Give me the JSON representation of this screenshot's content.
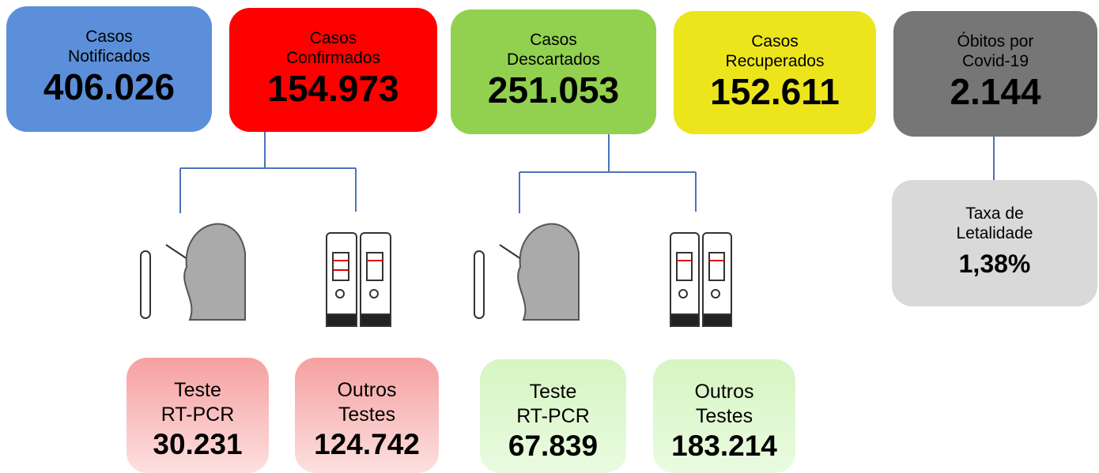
{
  "summary": [
    {
      "label": [
        "Casos",
        "Notificados"
      ],
      "value": "406.026"
    },
    {
      "label": [
        "Casos",
        "Confirmados"
      ],
      "value": "154.973"
    },
    {
      "label": [
        "Casos",
        "Descartados"
      ],
      "value": "251.053"
    },
    {
      "label": [
        "Casos",
        "Recuperados"
      ],
      "value": "152.611"
    },
    {
      "label": [
        "Óbitos por",
        "Covid-19"
      ],
      "value": "2.144"
    }
  ],
  "lethality": {
    "label": [
      "Taxa de",
      "Letalidade"
    ],
    "value": "1,38%"
  },
  "tests": [
    {
      "label": [
        "Teste",
        "RT-PCR"
      ],
      "value": "30.231"
    },
    {
      "label": [
        "Outros",
        "Testes"
      ],
      "value": "124.742"
    },
    {
      "label": [
        "Teste",
        "RT-PCR"
      ],
      "value": "67.839"
    },
    {
      "label": [
        "Outros",
        "Testes"
      ],
      "value": "183.214"
    }
  ]
}
